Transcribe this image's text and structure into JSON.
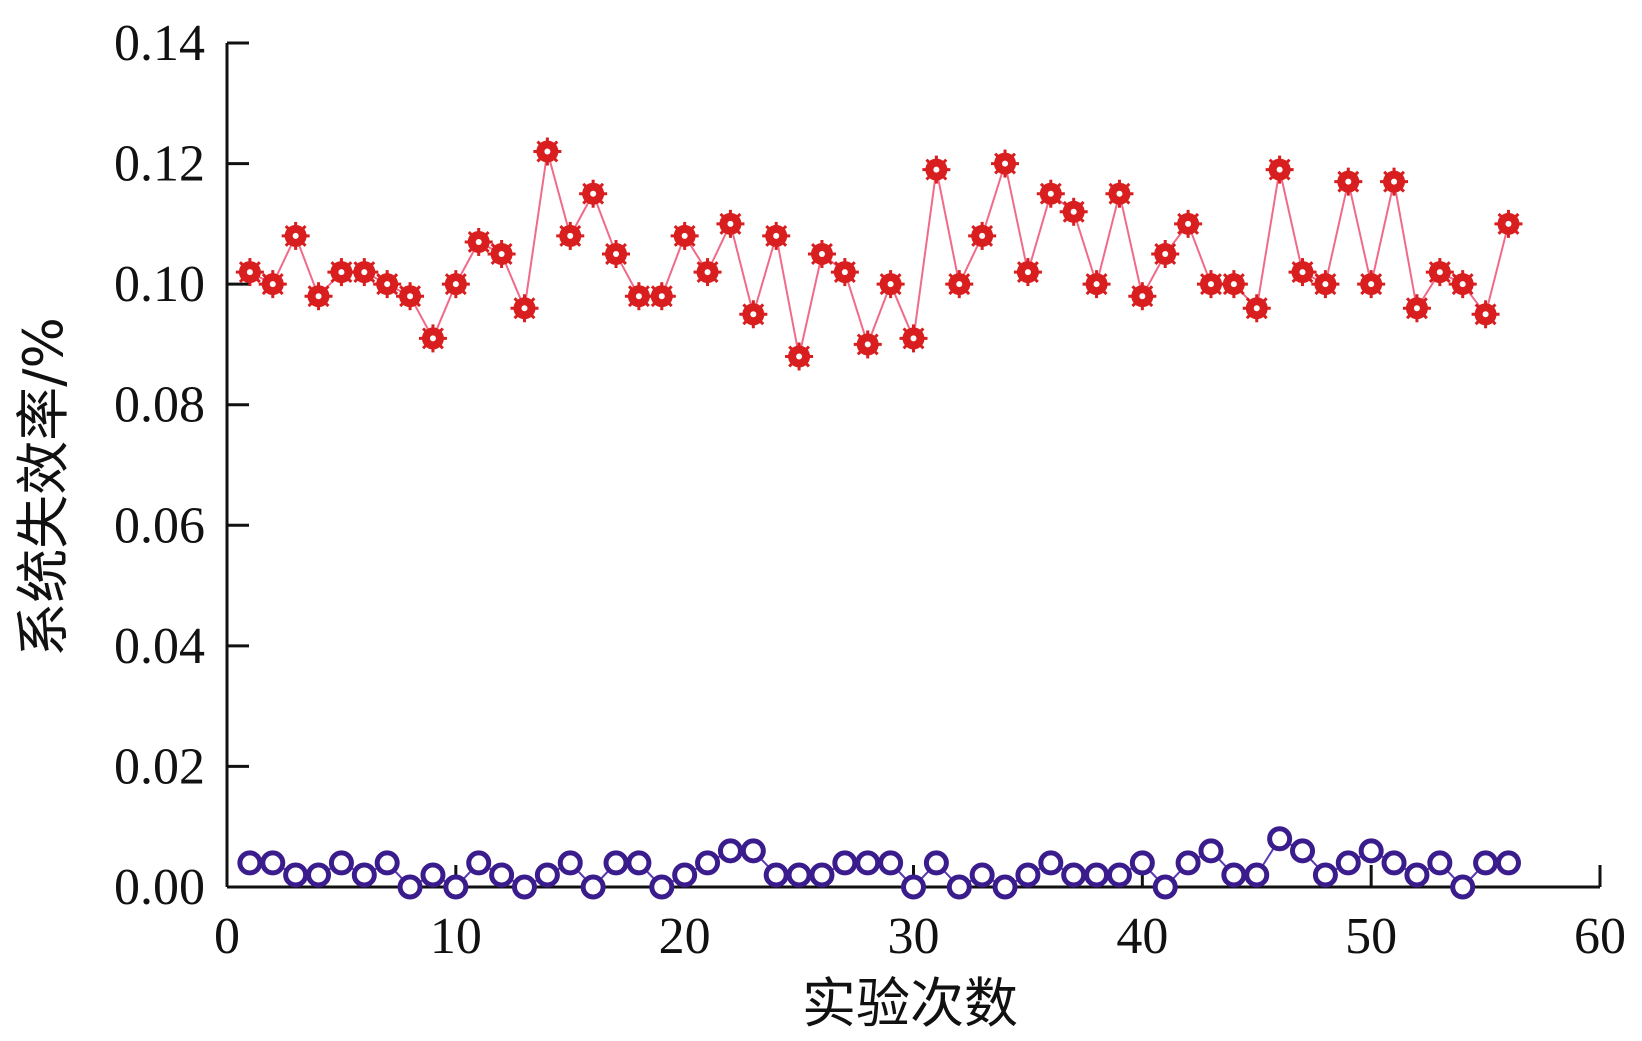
{
  "chart_data": {
    "type": "line",
    "title": "",
    "xlabel": "实验次数",
    "ylabel": "系统失效率/%",
    "xlim": [
      0,
      60
    ],
    "ylim": [
      0,
      0.14
    ],
    "xticks": [
      0,
      10,
      20,
      30,
      40,
      50,
      60
    ],
    "yticks": [
      0.0,
      0.02,
      0.04,
      0.06,
      0.08,
      0.1,
      0.12,
      0.14
    ],
    "x_tick_labels": [
      "0",
      "10",
      "20",
      "30",
      "40",
      "50",
      "60"
    ],
    "y_tick_labels": [
      "0.00",
      "0.02",
      "0.04",
      "0.06",
      "0.08",
      "0.10",
      "0.12",
      "0.14"
    ],
    "grid": false,
    "legend": "none",
    "x": [
      1,
      2,
      3,
      4,
      5,
      6,
      7,
      8,
      9,
      10,
      11,
      12,
      13,
      14,
      15,
      16,
      17,
      18,
      19,
      20,
      21,
      22,
      23,
      24,
      25,
      26,
      27,
      28,
      29,
      30,
      31,
      32,
      33,
      34,
      35,
      36,
      37,
      38,
      39,
      40,
      41,
      42,
      43,
      44,
      45,
      46,
      47,
      48,
      49,
      50,
      51,
      52,
      53,
      54,
      55,
      56
    ],
    "series": [
      {
        "color": "#d81e1e",
        "line_color": "#f06a8a",
        "marker": "star",
        "values": [
          0.102,
          0.1,
          0.108,
          0.098,
          0.102,
          0.102,
          0.1,
          0.098,
          0.091,
          0.1,
          0.107,
          0.105,
          0.096,
          0.122,
          0.108,
          0.115,
          0.105,
          0.098,
          0.098,
          0.108,
          0.102,
          0.11,
          0.095,
          0.108,
          0.088,
          0.105,
          0.102,
          0.09,
          0.1,
          0.091,
          0.119,
          0.1,
          0.108,
          0.12,
          0.102,
          0.115,
          0.112,
          0.1,
          0.115,
          0.098,
          0.105,
          0.11,
          0.1,
          0.1,
          0.096,
          0.119,
          0.102,
          0.1,
          0.117,
          0.1,
          0.117,
          0.096,
          0.102,
          0.1,
          0.095,
          0.11
        ]
      },
      {
        "color": "#3a1c8c",
        "line_color": "#5a3ab0",
        "marker": "circle",
        "values": [
          0.004,
          0.004,
          0.002,
          0.002,
          0.004,
          0.002,
          0.004,
          0.0,
          0.002,
          0.0,
          0.004,
          0.002,
          0.0,
          0.002,
          0.004,
          0.0,
          0.004,
          0.004,
          0.0,
          0.002,
          0.004,
          0.006,
          0.006,
          0.002,
          0.002,
          0.002,
          0.004,
          0.004,
          0.004,
          0.0,
          0.004,
          0.0,
          0.002,
          0.0,
          0.002,
          0.004,
          0.002,
          0.002,
          0.002,
          0.004,
          0.0,
          0.004,
          0.006,
          0.002,
          0.002,
          0.008,
          0.006,
          0.002,
          0.004,
          0.006,
          0.004,
          0.002,
          0.004,
          0.0,
          0.004,
          0.004
        ]
      }
    ]
  }
}
